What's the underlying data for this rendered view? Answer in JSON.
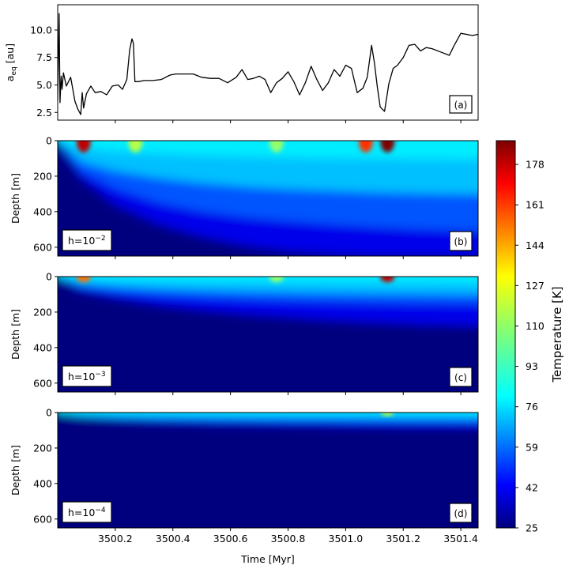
{
  "figure": {
    "xlabel": "Time [Myr]",
    "colorbar_label": "Temperature [K]",
    "colorbar_ticks": [
      "25",
      "42",
      "59",
      "76",
      "93",
      "110",
      "127",
      "144",
      "161",
      "178"
    ],
    "x_ticks": [
      "3500.2",
      "3500.4",
      "3500.6",
      "3500.8",
      "3501.0",
      "3501.2",
      "3501.4"
    ]
  },
  "panels": {
    "a": {
      "ylabel_main": "a",
      "ylabel_sub": "eq",
      "ylabel_unit": " [au]",
      "tag": "(a)",
      "y_ticks": [
        "2.5",
        "5.0",
        "7.5",
        "10.0"
      ]
    },
    "b": {
      "ylabel": "Depth [m]",
      "tag": "(b)",
      "h_base": "h=10",
      "h_exp": "−2",
      "y_ticks": [
        "0",
        "200",
        "400",
        "600"
      ]
    },
    "c": {
      "ylabel": "Depth [m]",
      "tag": "(c)",
      "h_base": "h=10",
      "h_exp": "−3",
      "y_ticks": [
        "0",
        "200",
        "400",
        "600"
      ]
    },
    "d": {
      "ylabel": "Depth [m]",
      "tag": "(d)",
      "h_base": "h=10",
      "h_exp": "−4",
      "y_ticks": [
        "0",
        "200",
        "400",
        "600"
      ]
    }
  },
  "chart_data": [
    {
      "type": "line",
      "panel": "a",
      "xlabel": "",
      "ylabel": "a_eq [au]",
      "xlim": [
        3500.0,
        3501.46
      ],
      "ylim": [
        1.8,
        12.3
      ],
      "color": "#000000",
      "x": [
        3500.0,
        3500.005,
        3500.008,
        3500.012,
        3500.015,
        3500.02,
        3500.03,
        3500.045,
        3500.06,
        3500.07,
        3500.08,
        3500.085,
        3500.09,
        3500.1,
        3500.115,
        3500.13,
        3500.15,
        3500.17,
        3500.19,
        3500.21,
        3500.225,
        3500.24,
        3500.25,
        3500.258,
        3500.263,
        3500.268,
        3500.28,
        3500.3,
        3500.33,
        3500.36,
        3500.39,
        3500.41,
        3500.44,
        3500.47,
        3500.5,
        3500.53,
        3500.56,
        3500.59,
        3500.62,
        3500.64,
        3500.66,
        3500.68,
        3500.7,
        3500.72,
        3500.74,
        3500.76,
        3500.78,
        3500.8,
        3500.82,
        3500.84,
        3500.86,
        3500.88,
        3500.9,
        3500.92,
        3500.94,
        3500.96,
        3500.98,
        3501.0,
        3501.02,
        3501.04,
        3501.06,
        3501.075,
        3501.09,
        3501.1,
        3501.11,
        3501.12,
        3501.135,
        3501.15,
        3501.165,
        3501.18,
        3501.2,
        3501.22,
        3501.24,
        3501.26,
        3501.28,
        3501.3,
        3501.33,
        3501.36,
        3501.375,
        3501.4,
        3501.42,
        3501.44,
        3501.46
      ],
      "y": [
        3.6,
        11.5,
        3.4,
        5.8,
        4.6,
        6.1,
        4.9,
        5.7,
        3.5,
        2.8,
        2.3,
        4.3,
        2.9,
        4.2,
        4.9,
        4.3,
        4.4,
        4.1,
        4.9,
        5.0,
        4.6,
        5.5,
        8.2,
        9.2,
        8.8,
        5.3,
        5.3,
        5.4,
        5.4,
        5.5,
        5.9,
        6.0,
        6.0,
        6.0,
        5.7,
        5.6,
        5.6,
        5.2,
        5.7,
        6.4,
        5.5,
        5.6,
        5.8,
        5.5,
        4.3,
        5.2,
        5.6,
        6.2,
        5.3,
        4.1,
        5.2,
        6.7,
        5.5,
        4.5,
        5.2,
        6.4,
        5.8,
        6.8,
        6.5,
        4.3,
        4.7,
        5.7,
        8.6,
        7.0,
        4.8,
        3.0,
        2.6,
        5.1,
        6.5,
        6.8,
        7.5,
        8.6,
        8.7,
        8.1,
        8.4,
        8.3,
        8.0,
        7.7,
        8.5,
        9.7,
        9.6,
        9.5,
        9.6
      ]
    },
    {
      "type": "heatmap",
      "panel": "b",
      "xlabel": "",
      "ylabel": "Depth [m]",
      "xlim": [
        3500.0,
        3501.46
      ],
      "ylim": [
        650,
        0
      ],
      "colormap": "jet",
      "value_label": "Temperature [K]",
      "vmin": 25,
      "vmax": 188,
      "isotherms": [
        {
          "value": 76,
          "depth": [
            0,
            118,
            170,
            210,
            238,
            258,
            272,
            282,
            290,
            296,
            300,
            302
          ]
        },
        {
          "value": 59,
          "depth": [
            0,
            170,
            270,
            348,
            398,
            430,
            452,
            470,
            485,
            497,
            505,
            510
          ]
        },
        {
          "value": 42,
          "depth": [
            0,
            210,
            360,
            470,
            540,
            590,
            620,
            640,
            650,
            650,
            650,
            650
          ]
        }
      ],
      "isotherm_x": [
        3500.0,
        3500.08,
        3500.2,
        3500.35,
        3500.5,
        3500.65,
        3500.8,
        3500.95,
        3501.1,
        3501.25,
        3501.4,
        3501.46
      ],
      "hot_spots": [
        {
          "x": 3500.09,
          "temperature": 178
        },
        {
          "x": 3500.27,
          "temperature": 115
        },
        {
          "x": 3500.76,
          "temperature": 110
        },
        {
          "x": 3501.07,
          "temperature": 160
        },
        {
          "x": 3501.145,
          "temperature": 188
        }
      ]
    },
    {
      "type": "heatmap",
      "panel": "c",
      "xlabel": "",
      "ylabel": "Depth [m]",
      "xlim": [
        3500.0,
        3501.46
      ],
      "ylim": [
        650,
        0
      ],
      "colormap": "jet",
      "value_label": "Temperature [K]",
      "vmin": 25,
      "vmax": 188,
      "isotherms": [
        {
          "value": 76,
          "depth": [
            0,
            38,
            55,
            68,
            76,
            82,
            87,
            91,
            94,
            96,
            98,
            99
          ]
        },
        {
          "value": 59,
          "depth": [
            0,
            58,
            85,
            105,
            118,
            128,
            136,
            142,
            147,
            150,
            152,
            153
          ]
        },
        {
          "value": 42,
          "depth": [
            0,
            80,
            120,
            160,
            188,
            210,
            228,
            245,
            258,
            268,
            275,
            278
          ]
        }
      ],
      "isotherm_x": [
        3500.0,
        3500.08,
        3500.2,
        3500.35,
        3500.5,
        3500.65,
        3500.8,
        3500.95,
        3501.1,
        3501.25,
        3501.4,
        3501.46
      ],
      "hot_spots": [
        {
          "x": 3500.09,
          "temperature": 150
        },
        {
          "x": 3500.76,
          "temperature": 110
        },
        {
          "x": 3501.145,
          "temperature": 178
        }
      ]
    },
    {
      "type": "heatmap",
      "panel": "d",
      "xlabel": "Time [Myr]",
      "ylabel": "Depth [m]",
      "xlim": [
        3500.0,
        3501.46
      ],
      "ylim": [
        650,
        0
      ],
      "colormap": "jet",
      "value_label": "Temperature [K]",
      "vmin": 25,
      "vmax": 188,
      "isotherms": [
        {
          "value": 76,
          "depth": [
            0,
            14,
            20,
            24,
            26,
            28,
            29,
            30,
            31,
            32,
            32,
            32
          ]
        },
        {
          "value": 59,
          "depth": [
            0,
            20,
            30,
            36,
            40,
            43,
            45,
            46,
            48,
            49,
            50,
            50
          ]
        },
        {
          "value": 42,
          "depth": [
            0,
            24,
            40,
            52,
            60,
            66,
            70,
            74,
            78,
            80,
            82,
            83
          ]
        }
      ],
      "isotherm_x": [
        3500.0,
        3500.08,
        3500.2,
        3500.35,
        3500.5,
        3500.65,
        3500.8,
        3500.95,
        3501.1,
        3501.25,
        3501.4,
        3501.46
      ],
      "hot_spots": [
        {
          "x": 3501.145,
          "temperature": 120
        }
      ]
    }
  ]
}
